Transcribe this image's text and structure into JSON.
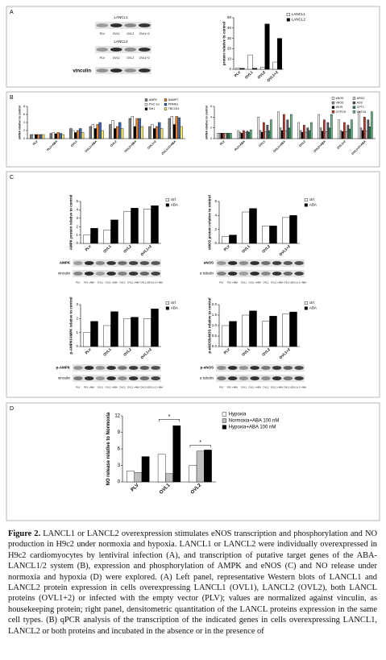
{
  "panel_labels": [
    "A",
    "B",
    "C",
    "D"
  ],
  "blots": [
    {
      "labels": [
        "LANCL1",
        "LANCL2",
        "vinculin"
      ],
      "lanes": [
        "PLV",
        "OVL1",
        "OVL2",
        "OVL1+2"
      ]
    },
    {
      "labels": [
        "AMPK",
        "vinculin"
      ],
      "lanes": [
        "PLV",
        "PLV +ABA",
        "OVL1",
        "OVL1 +ABA",
        "OVL2",
        "OVL2 +ABA",
        "OVL1+2",
        "OVL1+2 +ABA"
      ]
    },
    {
      "labels": [
        "eNOS",
        "α tubulin"
      ],
      "lanes": [
        "PLV",
        "PLV +ABA",
        "OVL1",
        "OVL1 +ABA",
        "OVL2",
        "OVL2 +ABA",
        "OVL1+2",
        "OVL1+2 +ABA"
      ]
    },
    {
      "labels": [
        "p-AMPK",
        "vinculin"
      ],
      "lanes": [
        "PLV",
        "PLV +ABA",
        "OVL1",
        "OVL1 +ABA",
        "OVL2",
        "OVL2 +ABA",
        "OVL1+2",
        "OVL1+2 +ABA"
      ]
    },
    {
      "labels": [
        "p-eNOS",
        "α tubulin"
      ],
      "lanes": [
        "PLV",
        "PLV +ABA",
        "OVL1",
        "OVL1 +ABA",
        "OVL2",
        "OVL2 +ABA",
        "OVL1+2",
        "OVL1+2 +ABA"
      ]
    }
  ],
  "chart_data": [
    {
      "type": "bar",
      "y_label": "protein relative to control",
      "categories": [
        "PLV",
        "OVL1",
        "OVL2",
        "OVL1+2"
      ],
      "series": [
        {
          "name": "LANCL1",
          "color": "#ffffff",
          "values": [
            1,
            14,
            2,
            7
          ]
        },
        {
          "name": "LANCL2",
          "color": "#000000",
          "values": [
            1,
            1,
            44,
            30
          ]
        }
      ],
      "ylim": [
        0,
        50
      ],
      "yticks": [
        0,
        10,
        20,
        30,
        40,
        50
      ],
      "legend": "upper right"
    },
    {
      "type": "bar",
      "y_label": "mRNA relative to control",
      "categories": [
        "PLV",
        "PLV+ABA",
        "OVL1",
        "OVL1+ABA",
        "OVL2",
        "OVL2+ABA",
        "OVL1+2",
        "OVL1+2+ABA"
      ],
      "series": [
        {
          "name": "AMPK",
          "color": "#7f7f7f",
          "values": [
            1,
            1.3,
            2.5,
            3,
            3.5,
            5,
            3,
            5
          ]
        },
        {
          "name": "PGC-1α",
          "color": "#ffffff",
          "values": [
            1,
            1.5,
            2,
            3.5,
            4.5,
            5.5,
            3.5,
            5.5
          ]
        },
        {
          "name": "Sirt1",
          "color": "#000000",
          "values": [
            1,
            1.2,
            1.5,
            2.5,
            2.5,
            3,
            2.5,
            3.5
          ]
        },
        {
          "name": "NAMPT",
          "color": "#e8822a",
          "values": [
            1,
            1.5,
            2,
            3.5,
            3,
            5,
            3,
            5.5
          ]
        },
        {
          "name": "PPARG",
          "color": "#3b66b0",
          "values": [
            1,
            1.3,
            2.5,
            4,
            4,
            5,
            4,
            5.2
          ]
        },
        {
          "name": "TBC1D1",
          "color": "#f2e66b",
          "values": [
            1,
            1,
            1.5,
            2,
            2.5,
            3,
            2.5,
            3
          ]
        }
      ],
      "ylim": [
        0,
        8
      ],
      "yticks": [
        0,
        2,
        4,
        6,
        8
      ],
      "legend": "upper right"
    },
    {
      "type": "bar",
      "y_label": "mRNA relative to control",
      "categories": [
        "PLV",
        "PLV+ABA",
        "OVL1",
        "OVL1+ABA",
        "OVL2",
        "OVL2+ABA",
        "OVL1+2",
        "OVL1+2+ABA"
      ],
      "series": [
        {
          "name": "eNOS",
          "color": "#ffffff",
          "values": [
            1,
            1.5,
            4,
            5,
            3,
            4.5,
            3.5,
            5
          ]
        },
        {
          "name": "nNOS",
          "color": "#9e9e9e",
          "values": [
            1,
            1.2,
            1.5,
            2,
            1.5,
            2,
            1.5,
            2
          ]
        },
        {
          "name": "iNOS",
          "color": "#000000",
          "values": [
            1,
            1,
            1.2,
            1.5,
            1.2,
            1.4,
            1.3,
            1.5
          ]
        },
        {
          "name": "GTPCH",
          "color": "#c0392b",
          "values": [
            1,
            1.5,
            3,
            4.5,
            2.5,
            3.5,
            3,
            4
          ]
        },
        {
          "name": "ARG2",
          "color": "#d9d9d9",
          "values": [
            1,
            1.1,
            1.3,
            1.5,
            1.2,
            1.3,
            1.3,
            1.4
          ]
        },
        {
          "name": "ASS",
          "color": "#5b5b5b",
          "values": [
            1,
            1.4,
            2.5,
            3.5,
            2,
            3,
            2.5,
            3.5
          ]
        },
        {
          "name": "CPT1",
          "color": "#2e7d5b",
          "values": [
            1,
            1.2,
            1.5,
            2,
            1.5,
            2,
            1.8,
            2.2
          ]
        },
        {
          "name": "CAT2A",
          "color": "#6fbf8f",
          "values": [
            1,
            1.6,
            3.5,
            4.5,
            3,
            4.5,
            3.5,
            5
          ]
        }
      ],
      "ylim": [
        0,
        6
      ],
      "yticks": [
        0,
        2,
        4,
        6
      ],
      "legend": "upper right"
    },
    {
      "type": "bar",
      "y_label": "AMPK protein relative to control",
      "categories": [
        "PLV",
        "OVL1",
        "OVL2",
        "OVL1+2"
      ],
      "series": [
        {
          "name": "ctrl",
          "color": "#ffffff",
          "values": [
            1,
            1.6,
            3.8,
            4.1
          ]
        },
        {
          "name": "ABA",
          "color": "#000000",
          "values": [
            1.8,
            2.8,
            4.2,
            4.5
          ]
        }
      ],
      "ylim": [
        0,
        5
      ],
      "yticks": [
        0,
        1,
        2,
        3,
        4,
        5
      ],
      "legend": "upper right"
    },
    {
      "type": "bar",
      "y_label": "eNOS protein relative to control",
      "categories": [
        "PLV",
        "OVL1",
        "OVL2",
        "OVL1+2"
      ],
      "series": [
        {
          "name": "ctrl",
          "color": "#ffffff",
          "values": [
            1,
            4.5,
            2.5,
            3.7
          ]
        },
        {
          "name": "ABA",
          "color": "#000000",
          "values": [
            1.2,
            5,
            2.5,
            4
          ]
        }
      ],
      "ylim": [
        0,
        6
      ],
      "yticks": [
        0,
        2,
        4,
        6
      ],
      "legend": "upper right"
    },
    {
      "type": "bar",
      "y_label": "p-AMPK/AMPK relative to control",
      "categories": [
        "PLV",
        "OVL1",
        "OVL2",
        "OVL1+2"
      ],
      "series": [
        {
          "name": "ctrl",
          "color": "#ffffff",
          "values": [
            1,
            1.5,
            2,
            2
          ]
        },
        {
          "name": "ABA",
          "color": "#000000",
          "values": [
            1.8,
            2.5,
            2.1,
            2.7
          ]
        }
      ],
      "ylim": [
        0,
        3
      ],
      "yticks": [
        0,
        1,
        2,
        3
      ],
      "legend": "upper right"
    },
    {
      "type": "bar",
      "y_label": "p-eNOS/eNOS relative to control",
      "categories": [
        "PLV",
        "OVL1",
        "OVL2",
        "OVL1+2"
      ],
      "series": [
        {
          "name": "ctrl",
          "color": "#ffffff",
          "values": [
            1,
            1.5,
            1.2,
            1.55
          ]
        },
        {
          "name": "ABA",
          "color": "#000000",
          "values": [
            1.2,
            1.7,
            1.45,
            1.65
          ]
        }
      ],
      "ylim": [
        0,
        2
      ],
      "yticks": [
        {
          "value": 0,
          "label": "0.0"
        },
        {
          "value": 0.5,
          "label": "0.5"
        },
        {
          "value": 1,
          "label": "1.0"
        },
        {
          "value": 1.5,
          "label": "1.5"
        },
        {
          "value": 2,
          "label": "2.0"
        }
      ],
      "legend": "upper right"
    },
    {
      "type": "bar",
      "y_label": "NO release relative to Normoxia",
      "categories": [
        "PLV",
        "OVL1",
        "OVL2"
      ],
      "series": [
        {
          "name": "Hypoxia",
          "color": "#ffffff",
          "values": [
            2,
            5,
            3
          ]
        },
        {
          "name": "Normoxia+ABA 100 nM",
          "color": "#bfbfbf",
          "values": [
            1.7,
            1.5,
            5.6
          ]
        },
        {
          "name": "Hypoxia+ABA 100 nM",
          "color": "#000000",
          "values": [
            4.6,
            10.2,
            5.8
          ]
        }
      ],
      "ylim": [
        0,
        12
      ],
      "yticks": [
        0,
        3,
        6,
        9,
        12
      ],
      "annotations": [
        "*",
        "*"
      ],
      "legend": "upper right"
    }
  ],
  "caption": {
    "label": "Figure 2.",
    "text": "LANCL1 or LANCL2 overexpression stimulates eNOS transcription and phosphorylation and NO production in H9c2 under normoxia and hypoxia. LANCL1 or LANCL2 were individually overexpressed in H9c2 cardiomyocytes by lentiviral infection (A), and transcription of putative target genes of the ABA-LANCL1/2 system (B), expression and phosphorylation of AMPK and eNOS (C) and NO release under normoxia and hypoxia (D) were explored. (A) Left panel, representative Western blots of LANCL1 and LANCL2 protein expression in cells overexpressing LANCL1 (OVL1), LANCL2 (OVL2), both LANCL proteins (OVL1+2) or infected with the empty vector (PLV); values are normalized against vinculin, as housekeeping protein; right panel, densitometric quantitation of the LANCL proteins expression in the same cell types. (B) qPCR analysis of the transcription of the indicated genes in cells overexpressing LANCL1, LANCL2 or both proteins and incubated in the absence or in the presence of"
  }
}
